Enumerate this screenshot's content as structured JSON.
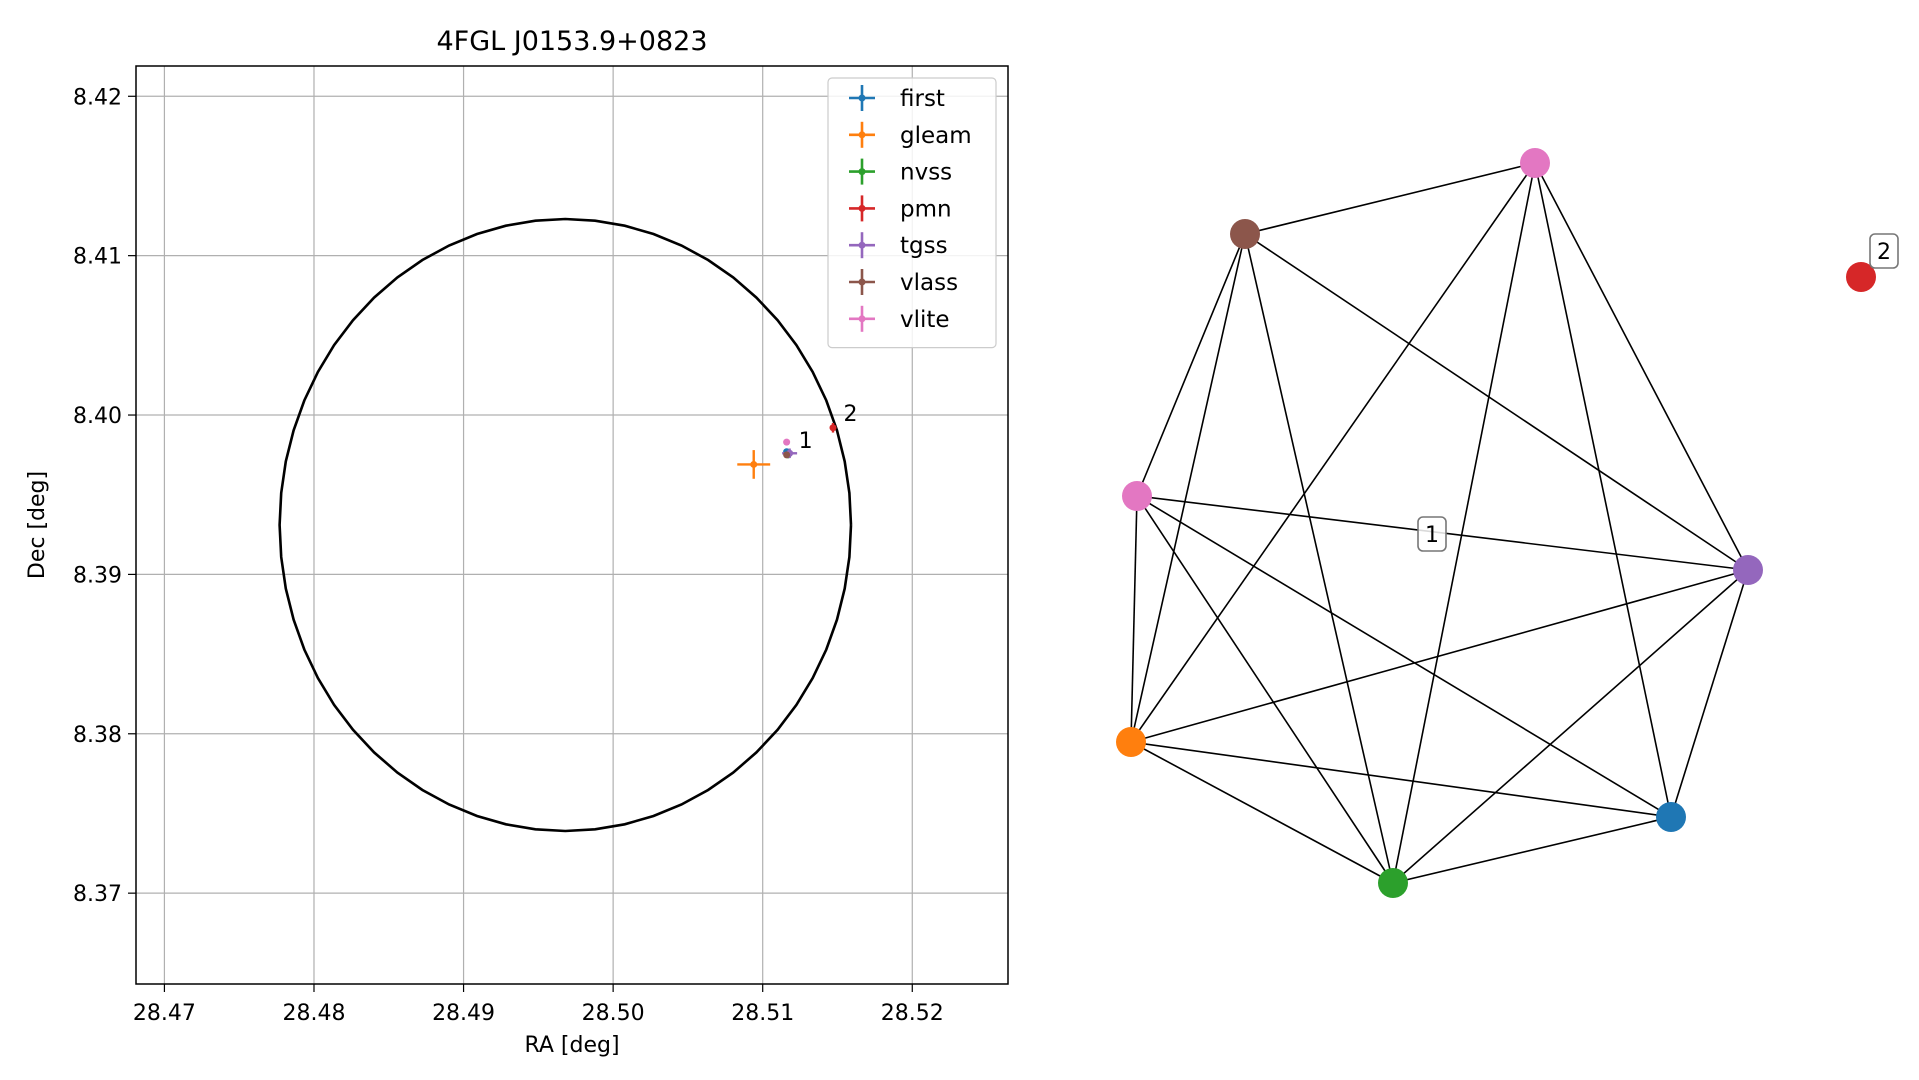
{
  "chart_data": [
    {
      "type": "scatter",
      "title": "4FGL J0153.9+0823",
      "xlabel": "RA [deg]",
      "ylabel": "Dec [deg]",
      "xlim": [
        28.4681,
        28.5264
      ],
      "ylim": [
        8.3643,
        8.4219
      ],
      "xticks": [
        "28.47",
        "28.48",
        "28.49",
        "28.50",
        "28.51",
        "28.52"
      ],
      "xtick_values": [
        28.47,
        28.48,
        28.49,
        28.5,
        28.51,
        28.52
      ],
      "yticks": [
        "8.37",
        "8.38",
        "8.39",
        "8.40",
        "8.41",
        "8.42"
      ],
      "ytick_values": [
        8.37,
        8.38,
        8.39,
        8.4,
        8.41,
        8.42
      ],
      "grid": true,
      "legend_position": "top-right",
      "ellipse": {
        "center": [
          28.4968,
          8.3931
        ],
        "semi_ra": 0.0191,
        "semi_dec": 0.0192,
        "color": "#000000"
      },
      "series": [
        {
          "name": "first",
          "color": "#1f77b4",
          "x": 28.5116,
          "y": 8.3977,
          "xerr": 0.0002,
          "yerr": 0.0001
        },
        {
          "name": "gleam",
          "color": "#ff7f0e",
          "x": 28.5094,
          "y": 8.3969,
          "xerr": 0.0011,
          "yerr": 0.0009
        },
        {
          "name": "nvss",
          "color": "#2ca02c",
          "x": 28.5117,
          "y": 8.3975,
          "xerr": 0.0002,
          "yerr": 0.0002
        },
        {
          "name": "pmn",
          "color": "#d62728",
          "x": 28.5147,
          "y": 8.3992,
          "xerr": 0.0002,
          "yerr": 0.0003
        },
        {
          "name": "tgss",
          "color": "#9467bd",
          "x": 28.5118,
          "y": 8.3976,
          "xerr": 0.0005,
          "yerr": 0.0003
        },
        {
          "name": "vlass",
          "color": "#8c564b",
          "x": 28.5116,
          "y": 8.3975,
          "xerr": 0.0001,
          "yerr": 0.0001
        },
        {
          "name": "vlite",
          "color": "#e377c2",
          "x": 28.5116,
          "y": 8.3983,
          "xerr": 0.0002,
          "yerr": 0.0002
        }
      ],
      "annotations": [
        {
          "text": "1",
          "x": 28.512,
          "y": 8.3978
        },
        {
          "text": "2",
          "x": 28.515,
          "y": 8.3995
        }
      ]
    },
    {
      "type": "network",
      "groups": [
        {
          "label": "1",
          "members": [
            "first",
            "gleam",
            "nvss",
            "tgss",
            "vlass",
            "vlite_a",
            "vlite_b"
          ]
        },
        {
          "label": "2",
          "members": [
            "pmn"
          ]
        }
      ],
      "nodes": [
        {
          "id": "vlite_a",
          "color": "#e377c2"
        },
        {
          "id": "vlass",
          "color": "#8c564b"
        },
        {
          "id": "vlite_b",
          "color": "#e377c2"
        },
        {
          "id": "gleam",
          "color": "#ff7f0e"
        },
        {
          "id": "nvss",
          "color": "#2ca02c"
        },
        {
          "id": "first",
          "color": "#1f77b4"
        },
        {
          "id": "tgss",
          "color": "#9467bd"
        },
        {
          "id": "pmn",
          "color": "#d62728"
        }
      ],
      "edges": [
        [
          "vlite_a",
          "vlass"
        ],
        [
          "vlite_a",
          "gleam"
        ],
        [
          "vlite_a",
          "nvss"
        ],
        [
          "vlite_a",
          "first"
        ],
        [
          "vlite_a",
          "tgss"
        ],
        [
          "vlass",
          "vlite_b"
        ],
        [
          "vlass",
          "gleam"
        ],
        [
          "vlass",
          "nvss"
        ],
        [
          "vlass",
          "tgss"
        ],
        [
          "vlite_b",
          "gleam"
        ],
        [
          "vlite_b",
          "nvss"
        ],
        [
          "vlite_b",
          "first"
        ],
        [
          "vlite_b",
          "tgss"
        ],
        [
          "gleam",
          "nvss"
        ],
        [
          "gleam",
          "first"
        ],
        [
          "gleam",
          "tgss"
        ],
        [
          "nvss",
          "first"
        ],
        [
          "nvss",
          "tgss"
        ],
        [
          "first",
          "tgss"
        ]
      ]
    }
  ]
}
